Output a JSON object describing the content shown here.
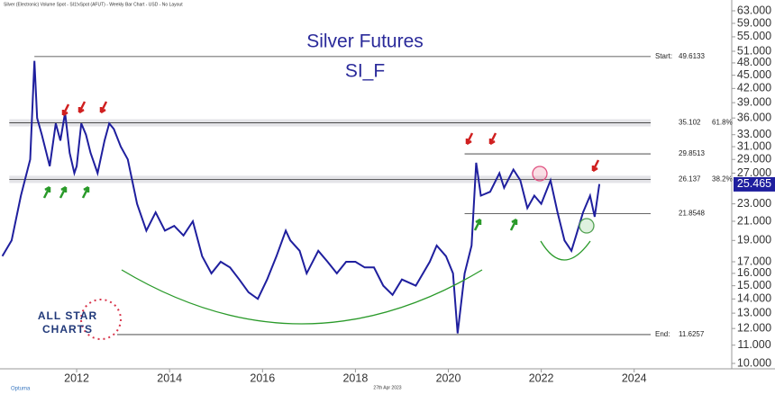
{
  "header": "Silver (Electronic) Volume Spot - SI1!xSpot (AFUT) - Weekly Bar Chart - USD - No Layout",
  "footer_date": "27th Apr 2023",
  "footer_brand": "Optuma",
  "logo": {
    "line1": "ALL STAR",
    "line2": "CHARTS"
  },
  "chart_data": {
    "type": "line",
    "title": "Silver Futures",
    "subtitle": "SI_F",
    "color": "#1f1f9e",
    "log_scale": true,
    "last_price": 25.465,
    "x": [
      2010.4,
      2010.6,
      2010.8,
      2011.0,
      2011.09,
      2011.15,
      2011.25,
      2011.42,
      2011.55,
      2011.65,
      2011.75,
      2011.85,
      2011.95,
      2012.0,
      2012.1,
      2012.2,
      2012.3,
      2012.45,
      2012.6,
      2012.7,
      2012.8,
      2012.95,
      2013.1,
      2013.3,
      2013.5,
      2013.7,
      2013.9,
      2014.1,
      2014.3,
      2014.5,
      2014.7,
      2014.9,
      2015.1,
      2015.3,
      2015.5,
      2015.7,
      2015.9,
      2016.1,
      2016.3,
      2016.5,
      2016.6,
      2016.8,
      2016.95,
      2017.2,
      2017.4,
      2017.6,
      2017.8,
      2018.0,
      2018.2,
      2018.4,
      2018.6,
      2018.8,
      2019.0,
      2019.3,
      2019.6,
      2019.75,
      2019.95,
      2020.1,
      2020.2,
      2020.35,
      2020.5,
      2020.6,
      2020.7,
      2020.9,
      2021.1,
      2021.2,
      2021.4,
      2021.55,
      2021.7,
      2021.85,
      2022.0,
      2022.2,
      2022.35,
      2022.5,
      2022.65,
      2022.75,
      2022.9,
      2023.05,
      2023.15,
      2023.25
    ],
    "values": [
      17.5,
      19,
      24,
      29,
      48.5,
      36,
      33,
      28,
      35,
      32,
      37,
      30,
      27,
      28,
      35,
      33,
      30,
      27,
      32,
      35,
      34,
      31,
      29,
      23,
      20,
      22,
      20,
      20.5,
      19.5,
      21,
      17.5,
      16,
      17,
      16.5,
      15.5,
      14.5,
      14,
      15.5,
      17.5,
      20,
      19,
      18,
      16,
      18,
      17,
      16,
      17,
      17,
      16.5,
      16.5,
      15,
      14.3,
      15.5,
      15,
      17,
      18.5,
      17.5,
      16,
      11.7,
      16,
      18.5,
      28.5,
      24,
      24.5,
      27,
      25,
      27.5,
      26,
      22.5,
      24,
      23,
      26,
      22,
      19,
      18,
      19.5,
      22,
      24,
      21.5,
      25.5
    ],
    "xlim": [
      2010.35,
      2026.1
    ],
    "xticks": [
      2012,
      2014,
      2016,
      2018,
      2020,
      2022,
      2024
    ],
    "ylim": [
      10,
      63
    ],
    "yticks": [
      {
        "value": 63,
        "label": "63.000"
      },
      {
        "value": 59,
        "label": "59.000"
      },
      {
        "value": 55,
        "label": "55.000"
      },
      {
        "value": 51,
        "label": "51.000"
      },
      {
        "value": 48,
        "label": "48.000"
      },
      {
        "value": 45,
        "label": "45.000"
      },
      {
        "value": 42,
        "label": "42.000"
      },
      {
        "value": 39,
        "label": "39.000"
      },
      {
        "value": 36,
        "label": "36.000"
      },
      {
        "value": 33,
        "label": "33.000"
      },
      {
        "value": 31,
        "label": "31.000"
      },
      {
        "value": 29,
        "label": "29.000"
      },
      {
        "value": 27,
        "label": "27.000"
      },
      {
        "value": 23,
        "label": "23.000"
      },
      {
        "value": 21,
        "label": "21.000"
      },
      {
        "value": 19,
        "label": "19.000"
      },
      {
        "value": 17,
        "label": "17.000"
      },
      {
        "value": 16,
        "label": "16.000"
      },
      {
        "value": 15,
        "label": "15.000"
      },
      {
        "value": 14,
        "label": "14.000"
      },
      {
        "value": 13,
        "label": "13.000"
      },
      {
        "value": 12,
        "label": "12.000"
      },
      {
        "value": 11,
        "label": "11.000"
      },
      {
        "value": 10,
        "label": "10.000"
      }
    ],
    "levels": [
      {
        "value": 49.6133,
        "prefix": "Start:",
        "from": 2011.09
      },
      {
        "value": 35.102,
        "note": "61.8%",
        "from": 2010.55,
        "band": true
      },
      {
        "value": 29.8513,
        "from": 2020.35
      },
      {
        "value": 26.137,
        "note": "38.2%",
        "from": 2010.55,
        "band": true
      },
      {
        "value": 21.8548,
        "from": 2020.35
      },
      {
        "value": 11.6257,
        "prefix": "End:",
        "from": 2012.87
      }
    ]
  }
}
